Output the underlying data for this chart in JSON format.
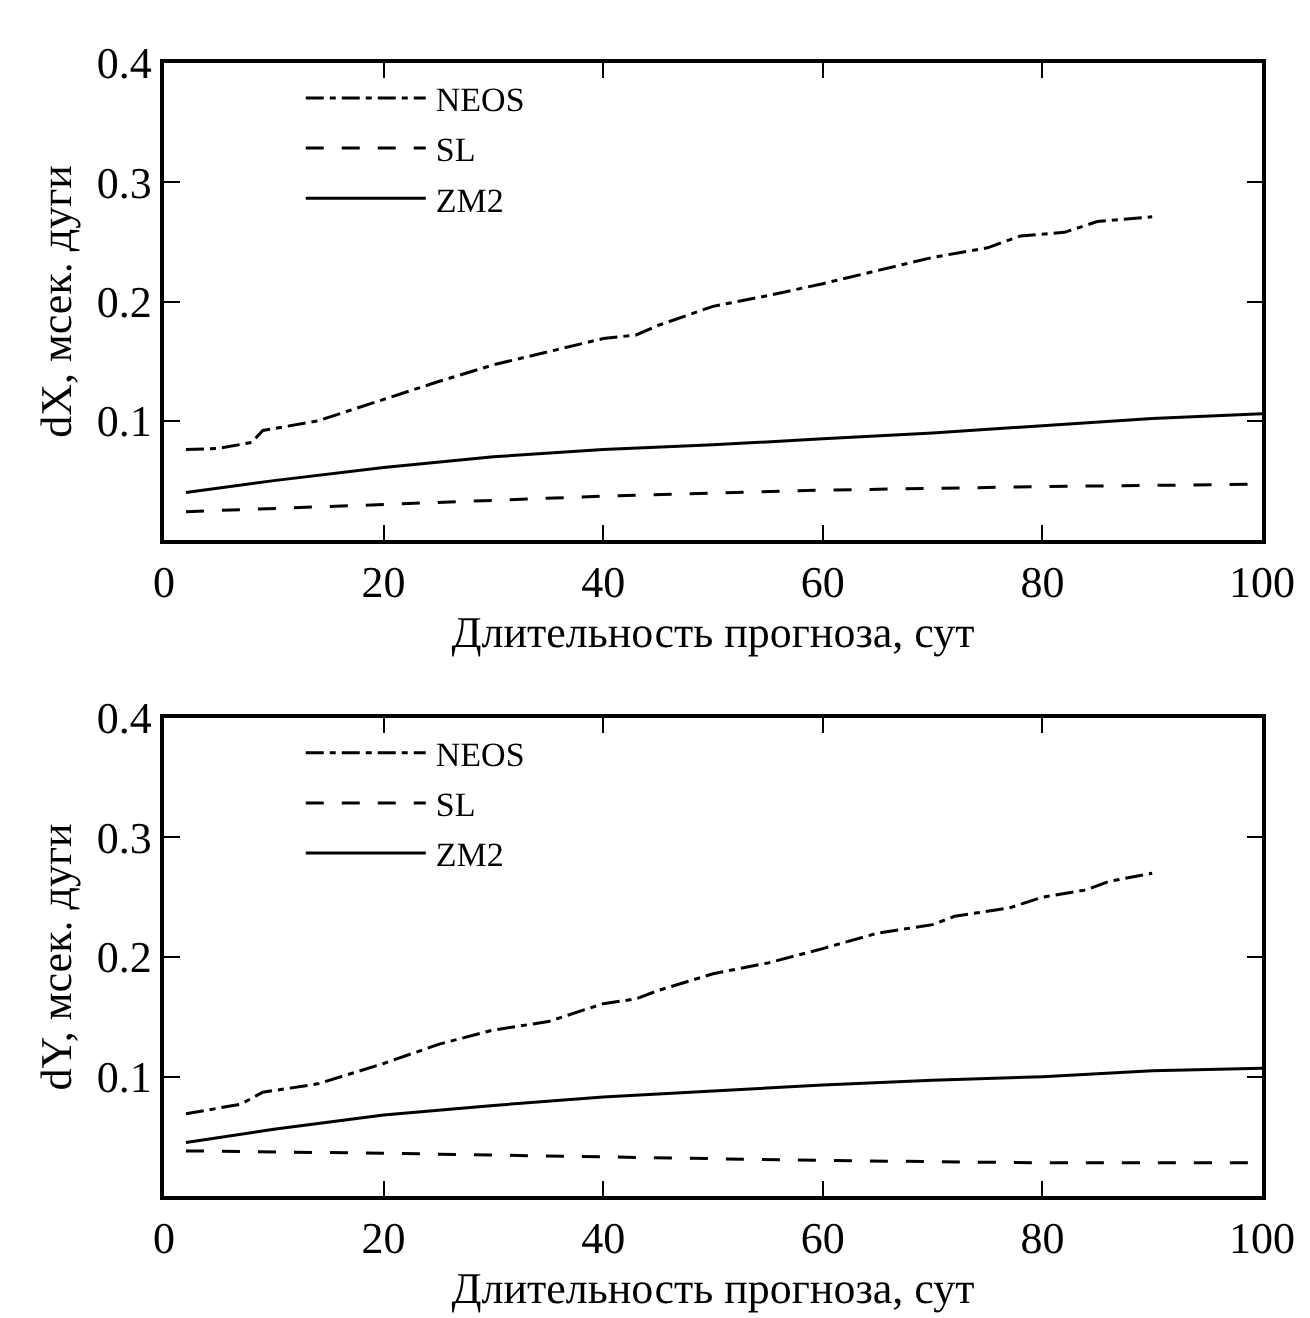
{
  "chart_data": [
    {
      "type": "line",
      "xlabel": "Длительность прогноза, сут",
      "ylabel": "dX, мсек. дуги",
      "xlim": [
        0,
        100
      ],
      "xticks": [
        0,
        20,
        40,
        60,
        80,
        100
      ],
      "ylim": [
        0,
        0.4
      ],
      "yticks": [
        0.1,
        0.2,
        0.3,
        0.4
      ],
      "legend": "top left",
      "series": [
        {
          "name": "NEOS",
          "color": "#000000",
          "line_style": "dashdot",
          "x": [
            2,
            5,
            8,
            9,
            14,
            20,
            25,
            30,
            35,
            40,
            43,
            45,
            50,
            55,
            60,
            65,
            70,
            75,
            78,
            82,
            85,
            90
          ],
          "values": [
            0.076,
            0.077,
            0.082,
            0.092,
            0.1,
            0.118,
            0.133,
            0.147,
            0.158,
            0.169,
            0.172,
            0.18,
            0.196,
            0.205,
            0.215,
            0.226,
            0.237,
            0.245,
            0.255,
            0.258,
            0.267,
            0.271
          ]
        },
        {
          "name": "SL",
          "color": "#000000",
          "line_style": "dashed",
          "x": [
            2,
            20,
            40,
            60,
            80,
            100
          ],
          "values": [
            0.024,
            0.03,
            0.037,
            0.042,
            0.045,
            0.047
          ]
        },
        {
          "name": "ZM2",
          "color": "#000000",
          "line_style": "solid",
          "x": [
            2,
            10,
            20,
            30,
            40,
            50,
            60,
            70,
            80,
            90,
            100
          ],
          "values": [
            0.04,
            0.05,
            0.061,
            0.07,
            0.076,
            0.08,
            0.085,
            0.09,
            0.096,
            0.102,
            0.106
          ]
        }
      ]
    },
    {
      "type": "line",
      "xlabel": "Длительность прогноза, сут",
      "ylabel": "dY, мсек. дуги",
      "xlim": [
        0,
        100
      ],
      "xticks": [
        0,
        20,
        40,
        60,
        80,
        100
      ],
      "ylim": [
        0,
        0.4
      ],
      "yticks": [
        0.1,
        0.2,
        0.3,
        0.4
      ],
      "legend": "top left",
      "series": [
        {
          "name": "NEOS",
          "color": "#000000",
          "line_style": "dashdot",
          "x": [
            2,
            7,
            9,
            14,
            20,
            25,
            30,
            35,
            40,
            43,
            45,
            50,
            55,
            60,
            65,
            70,
            72,
            77,
            80,
            84,
            86,
            90
          ],
          "values": [
            0.069,
            0.077,
            0.087,
            0.094,
            0.111,
            0.127,
            0.139,
            0.146,
            0.161,
            0.165,
            0.172,
            0.186,
            0.195,
            0.207,
            0.22,
            0.227,
            0.234,
            0.241,
            0.25,
            0.256,
            0.263,
            0.27
          ]
        },
        {
          "name": "SL",
          "color": "#000000",
          "line_style": "dashed",
          "x": [
            2,
            20,
            40,
            60,
            80,
            100
          ],
          "values": [
            0.038,
            0.036,
            0.033,
            0.03,
            0.028,
            0.028
          ]
        },
        {
          "name": "ZM2",
          "color": "#000000",
          "line_style": "solid",
          "x": [
            2,
            10,
            20,
            30,
            40,
            50,
            60,
            70,
            80,
            90,
            100
          ],
          "values": [
            0.045,
            0.056,
            0.068,
            0.076,
            0.083,
            0.088,
            0.093,
            0.097,
            0.1,
            0.105,
            0.107
          ]
        }
      ]
    }
  ]
}
